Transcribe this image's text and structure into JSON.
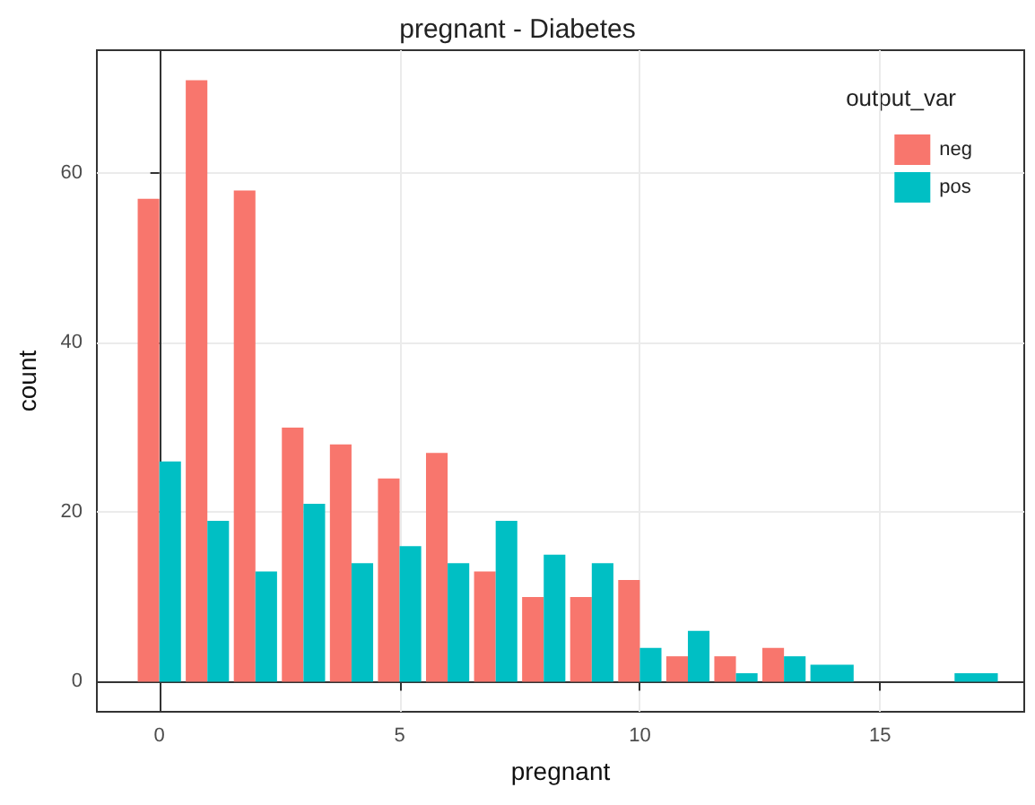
{
  "chart_data": {
    "type": "bar",
    "title": "pregnant - Diabetes",
    "xlabel": "pregnant",
    "ylabel": "count",
    "legend_title": "output_var",
    "x": [
      0,
      1,
      2,
      3,
      4,
      5,
      6,
      7,
      8,
      9,
      10,
      11,
      12,
      13,
      14,
      17
    ],
    "series": [
      {
        "name": "neg",
        "color": "#f8766d",
        "values": [
          57,
          71,
          58,
          30,
          28,
          24,
          27,
          13,
          10,
          10,
          12,
          3,
          3,
          4,
          null,
          null
        ]
      },
      {
        "name": "pos",
        "color": "#00bfc4",
        "values": [
          26,
          19,
          13,
          21,
          14,
          16,
          14,
          19,
          15,
          14,
          4,
          6,
          1,
          3,
          2,
          1
        ]
      }
    ],
    "xlim": [
      -1.3,
      18.0
    ],
    "xticks": [
      0,
      5,
      10,
      15
    ],
    "ylim": [
      -3.55,
      74.55
    ],
    "yticks": [
      0,
      20,
      40,
      60
    ],
    "grid": true,
    "legend": "top right"
  }
}
